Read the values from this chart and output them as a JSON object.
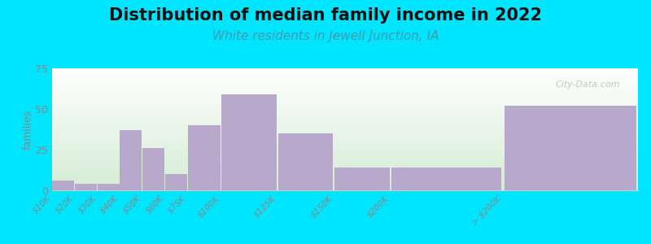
{
  "title": "Distribution of median family income in 2022",
  "subtitle": "White residents in Jewell Junction, IA",
  "ylabel": "families",
  "categories": [
    "$10K",
    "$20K",
    "$30K",
    "$40K",
    "$50K",
    "$60K",
    "$75K",
    "$100K",
    "$125K",
    "$150K",
    "$200K",
    "> $200K"
  ],
  "values": [
    6,
    4,
    4,
    37,
    26,
    10,
    40,
    59,
    35,
    14,
    14,
    52
  ],
  "left_edges": [
    0,
    10,
    20,
    30,
    40,
    50,
    60,
    75,
    100,
    125,
    150,
    200
  ],
  "widths": [
    10,
    10,
    10,
    10,
    10,
    10,
    15,
    25,
    25,
    25,
    50,
    60
  ],
  "bar_color": "#b8a8cc",
  "background_outer": "#00e5ff",
  "plot_bg_top": "#ffffff",
  "plot_bg_bottom": "#d4edd4",
  "ylim": [
    0,
    75
  ],
  "yticks": [
    0,
    25,
    50,
    75
  ],
  "title_fontsize": 15,
  "subtitle_fontsize": 11,
  "subtitle_color": "#4499aa",
  "watermark": "City-Data.com",
  "tick_label_color": "#888888",
  "ylabel_color": "#888888"
}
